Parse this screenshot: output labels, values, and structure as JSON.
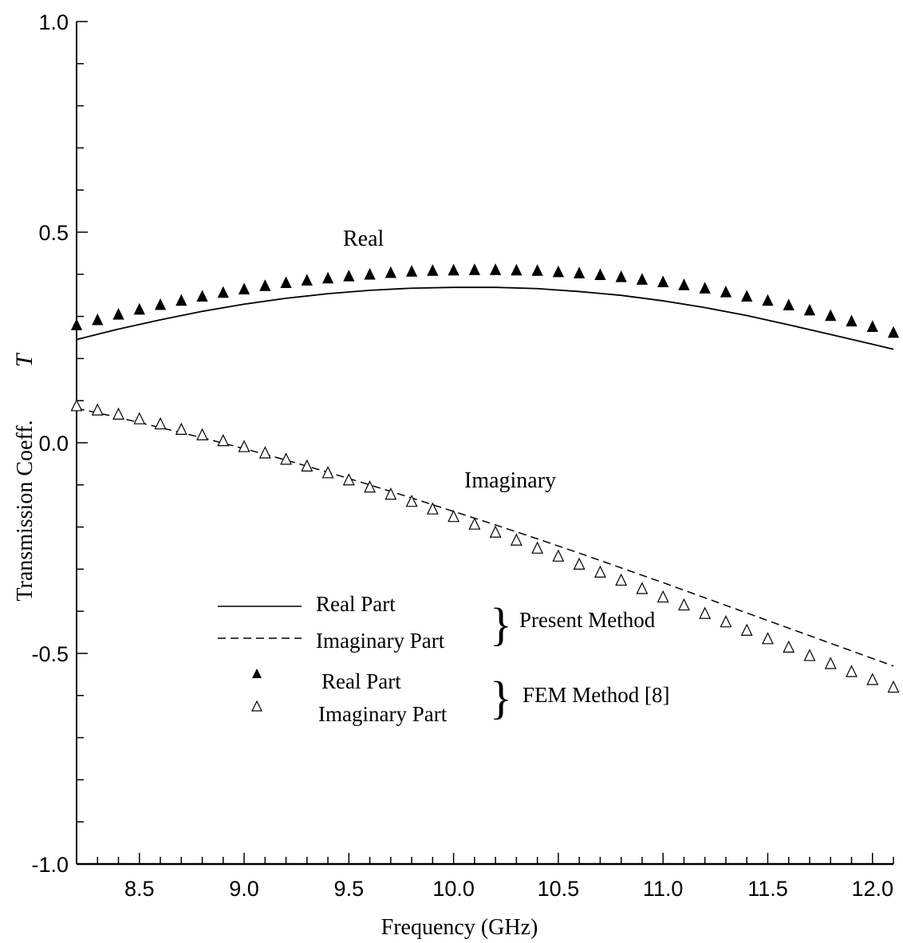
{
  "chart_data": {
    "type": "line",
    "xlabel": "Frequency (GHz)",
    "ylabel": "Transmission Coeff.",
    "ylabel_symbol": "T",
    "xlim": [
      8.2,
      12.1
    ],
    "ylim": [
      -1.0,
      1.0
    ],
    "x_ticks": [
      "8.5",
      "9.0",
      "9.5",
      "10.0",
      "10.5",
      "11.0",
      "11.5",
      "12.0"
    ],
    "y_ticks": [
      "-1.0",
      "-0.5",
      "0.0",
      "0.5",
      "1.0"
    ],
    "grid": false,
    "annotations": {
      "real": "Real",
      "imaginary": "Imaginary"
    },
    "legend": {
      "entries": [
        "Real Part",
        "Imaginary Part",
        "Real Part",
        "Imaginary Part"
      ],
      "groups": [
        "Present Method",
        "FEM Method [8]"
      ]
    },
    "series": [
      {
        "name": "Real Part",
        "group": "Present Method",
        "style": "solid",
        "x": [
          8.2,
          8.4,
          8.6,
          8.8,
          9.0,
          9.2,
          9.4,
          9.6,
          9.8,
          10.0,
          10.2,
          10.4,
          10.6,
          10.8,
          11.0,
          11.2,
          11.4,
          11.6,
          11.8,
          12.0,
          12.1
        ],
        "y": [
          0.245,
          0.27,
          0.292,
          0.312,
          0.329,
          0.343,
          0.354,
          0.362,
          0.367,
          0.369,
          0.369,
          0.366,
          0.359,
          0.35,
          0.337,
          0.321,
          0.302,
          0.28,
          0.257,
          0.234,
          0.222
        ]
      },
      {
        "name": "Imaginary Part",
        "group": "Present Method",
        "style": "dashed",
        "x": [
          8.2,
          8.4,
          8.6,
          8.8,
          9.0,
          9.2,
          9.4,
          9.6,
          9.8,
          10.0,
          10.2,
          10.4,
          10.6,
          10.8,
          11.0,
          11.2,
          11.4,
          11.6,
          11.8,
          12.0,
          12.1
        ],
        "y": [
          0.082,
          0.06,
          0.036,
          0.012,
          -0.014,
          -0.041,
          -0.07,
          -0.1,
          -0.131,
          -0.163,
          -0.195,
          -0.228,
          -0.262,
          -0.297,
          -0.332,
          -0.368,
          -0.404,
          -0.44,
          -0.476,
          -0.512,
          -0.53
        ]
      },
      {
        "name": "Real Part",
        "group": "FEM Method [8]",
        "style": "filled-triangle",
        "x": [
          8.2,
          8.3,
          8.4,
          8.5,
          8.6,
          8.7,
          8.8,
          8.9,
          9.0,
          9.1,
          9.2,
          9.3,
          9.4,
          9.5,
          9.6,
          9.7,
          9.8,
          9.9,
          10.0,
          10.1,
          10.2,
          10.3,
          10.4,
          10.5,
          10.6,
          10.7,
          10.8,
          10.9,
          11.0,
          11.1,
          11.2,
          11.3,
          11.4,
          11.5,
          11.6,
          11.7,
          11.8,
          11.9,
          12.0,
          12.1
        ],
        "y": [
          0.28,
          0.292,
          0.305,
          0.317,
          0.328,
          0.338,
          0.348,
          0.357,
          0.365,
          0.373,
          0.38,
          0.386,
          0.391,
          0.396,
          0.4,
          0.404,
          0.407,
          0.409,
          0.41,
          0.411,
          0.411,
          0.41,
          0.409,
          0.406,
          0.403,
          0.399,
          0.394,
          0.388,
          0.382,
          0.375,
          0.367,
          0.358,
          0.348,
          0.338,
          0.327,
          0.315,
          0.302,
          0.289,
          0.276,
          0.262
        ]
      },
      {
        "name": "Imaginary Part",
        "group": "FEM Method [8]",
        "style": "open-triangle",
        "x": [
          8.2,
          8.3,
          8.4,
          8.5,
          8.6,
          8.7,
          8.8,
          8.9,
          9.0,
          9.1,
          9.2,
          9.3,
          9.4,
          9.5,
          9.6,
          9.7,
          9.8,
          9.9,
          10.0,
          10.1,
          10.2,
          10.3,
          10.4,
          10.5,
          10.6,
          10.7,
          10.8,
          10.9,
          11.0,
          11.1,
          11.2,
          11.3,
          11.4,
          11.5,
          11.6,
          11.7,
          11.8,
          11.9,
          12.0,
          12.1
        ],
        "y": [
          0.088,
          0.078,
          0.068,
          0.057,
          0.045,
          0.032,
          0.019,
          0.005,
          -0.009,
          -0.024,
          -0.039,
          -0.055,
          -0.071,
          -0.088,
          -0.105,
          -0.122,
          -0.139,
          -0.157,
          -0.175,
          -0.193,
          -0.212,
          -0.231,
          -0.25,
          -0.269,
          -0.288,
          -0.307,
          -0.326,
          -0.346,
          -0.366,
          -0.385,
          -0.405,
          -0.425,
          -0.445,
          -0.465,
          -0.485,
          -0.505,
          -0.524,
          -0.543,
          -0.562,
          -0.58
        ]
      }
    ]
  }
}
